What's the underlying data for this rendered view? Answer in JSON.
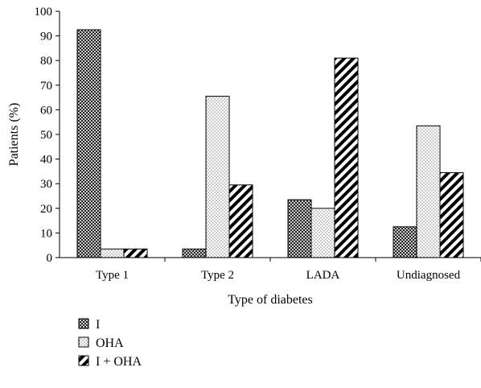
{
  "chart_data": {
    "type": "bar",
    "xlabel": "Type of diabetes",
    "ylabel": "Patients (%)",
    "ylim": [
      0,
      100
    ],
    "yticks": [
      0,
      10,
      20,
      30,
      40,
      50,
      60,
      70,
      80,
      90,
      100
    ],
    "categories": [
      "Type 1",
      "Type 2",
      "LADA",
      "Undiagnosed"
    ],
    "series": [
      {
        "name": "I",
        "pattern": "crosshatch",
        "values": [
          92.5,
          3.5,
          23.5,
          12.5
        ]
      },
      {
        "name": "OHA",
        "pattern": "dotted",
        "values": [
          3.5,
          65.5,
          20,
          53.5
        ]
      },
      {
        "name": "I + OHA",
        "pattern": "diagonal-stripes",
        "values": [
          3.5,
          29.5,
          81,
          34.5
        ]
      }
    ],
    "grid": false,
    "legend_position": "bottom-left",
    "colors": {
      "axis": "#000000",
      "bar_outline": "#000000",
      "background": "#ffffff"
    }
  }
}
